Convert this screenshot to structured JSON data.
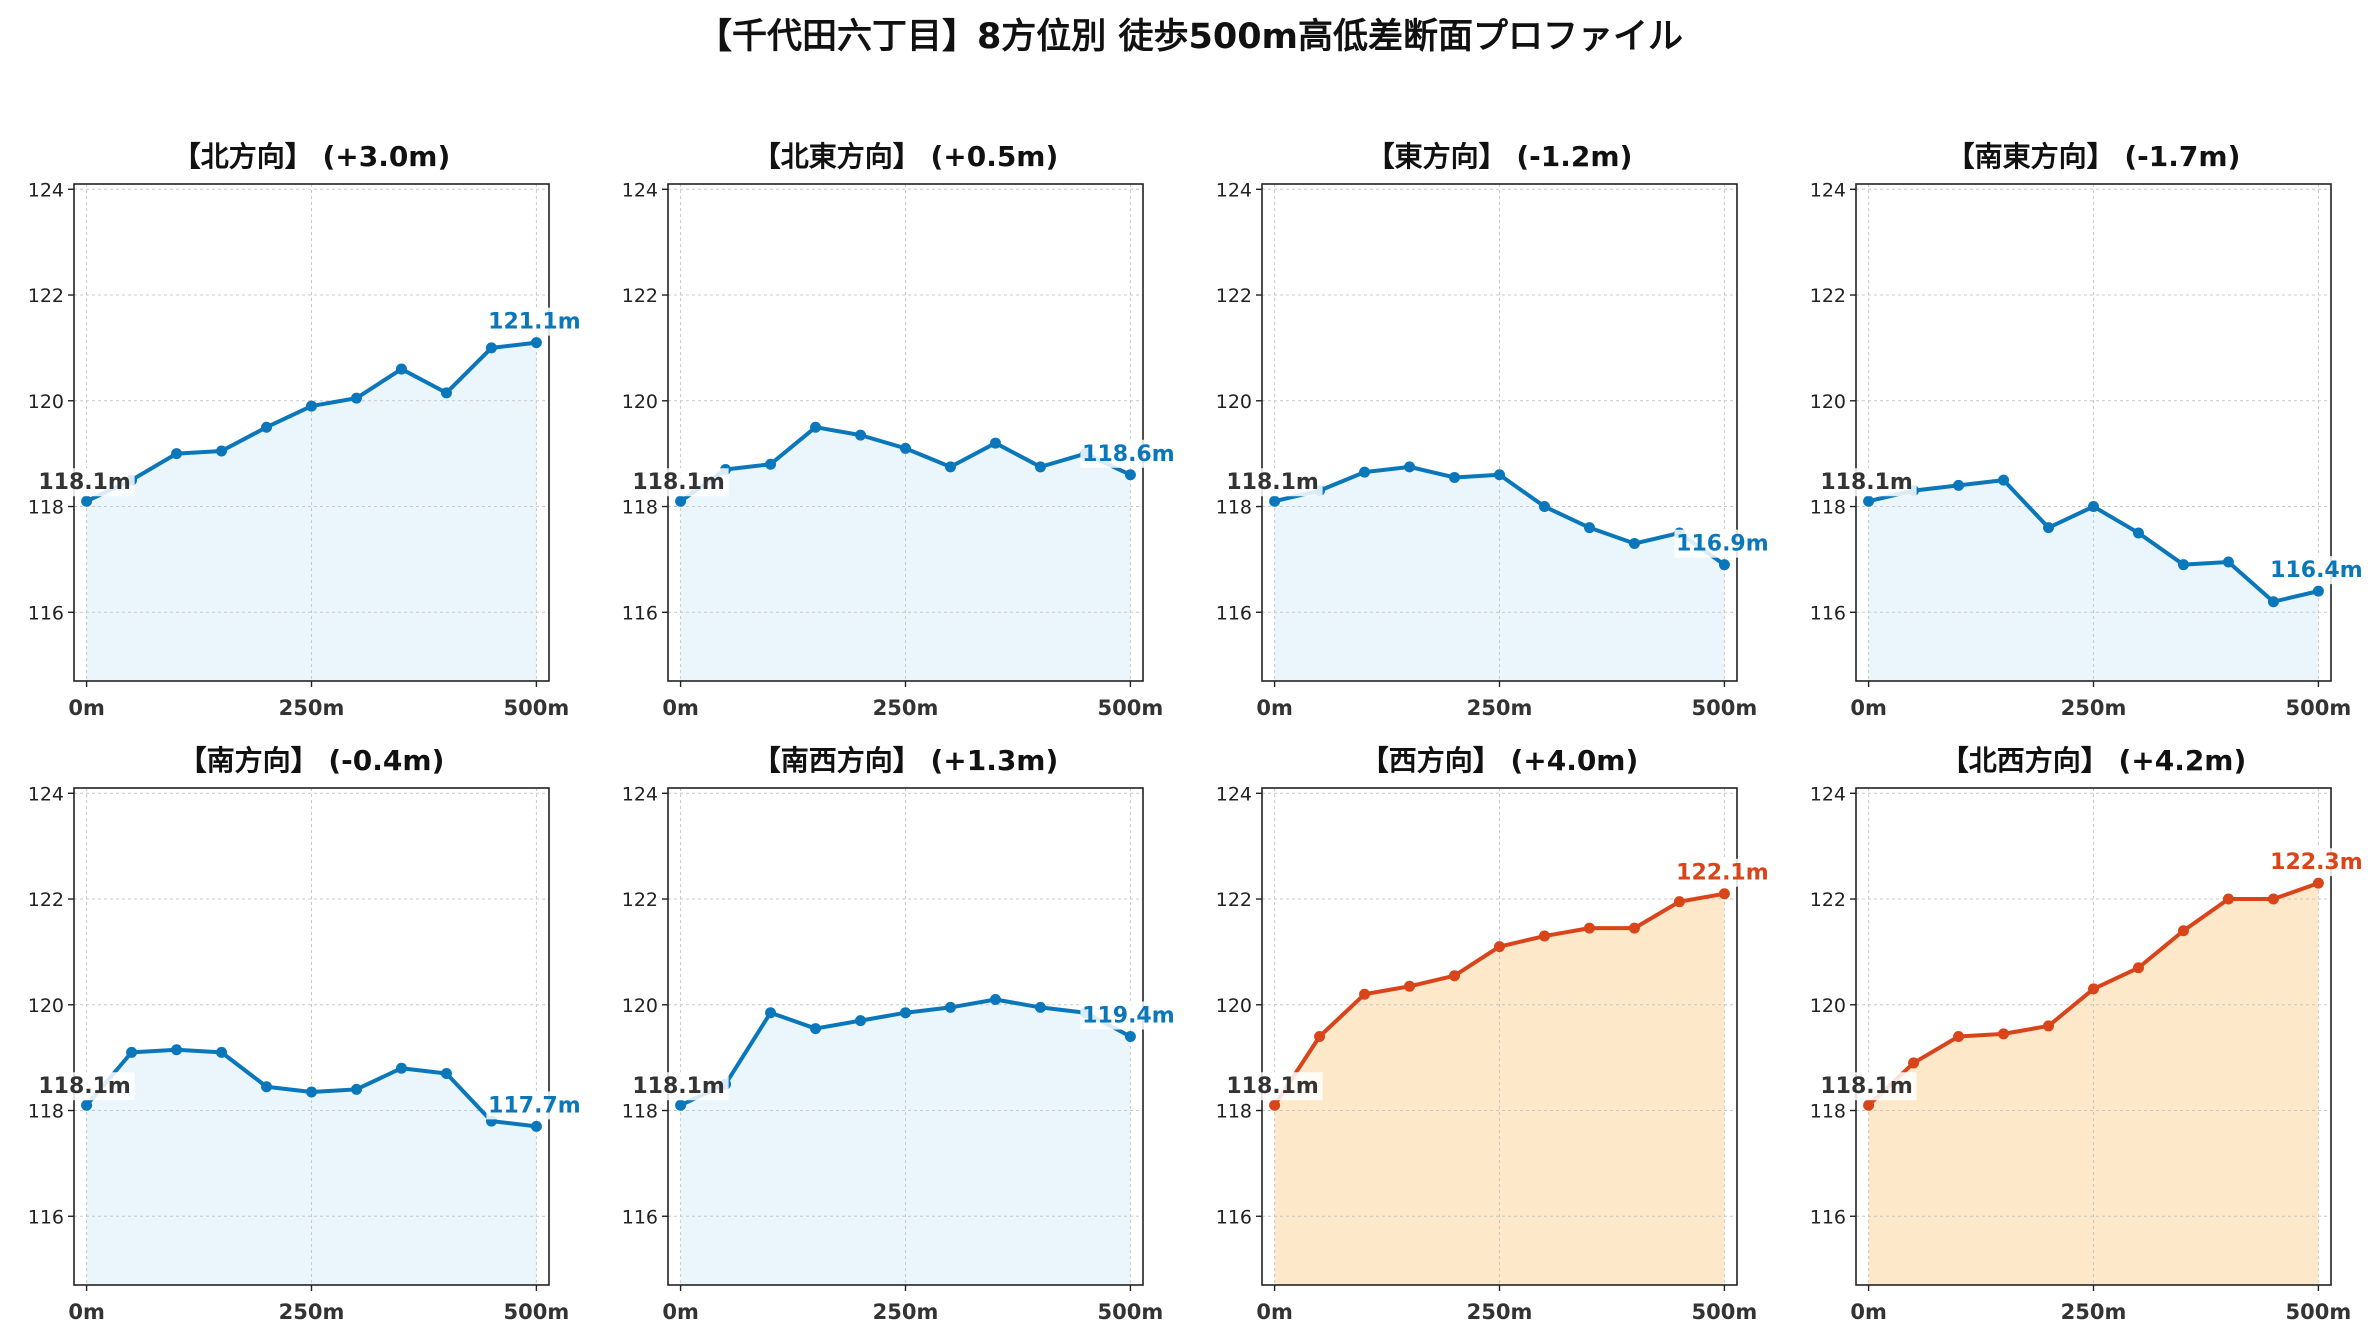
{
  "title": "【千代田六丁目】8方位別 徒歩500m高低差断面プロファイル",
  "colors": {
    "down_line": "#0a77bb",
    "down_fill": "#eaf6fc",
    "up_line": "#d9441a",
    "up_fill": "#fde9c9",
    "start_label": "#333333"
  },
  "chart_data": [
    {
      "type": "line",
      "title": "【北方向】 (+3.0m)",
      "x": [
        0,
        50,
        100,
        150,
        200,
        250,
        300,
        350,
        400,
        450,
        500
      ],
      "x_tick_labels": [
        "0m",
        "250m",
        "500m"
      ],
      "x_ticks": [
        0,
        250,
        500
      ],
      "y": [
        118.1,
        118.5,
        119.0,
        119.05,
        119.5,
        119.9,
        120.05,
        120.6,
        120.15,
        121.0,
        121.1
      ],
      "ylim": [
        114.7,
        124.1
      ],
      "y_ticks": [
        116,
        118,
        120,
        122,
        124
      ],
      "start_label": "118.1m",
      "end_label": "121.1m",
      "style": "blue",
      "grid": true
    },
    {
      "type": "line",
      "title": "【北東方向】 (+0.5m)",
      "x": [
        0,
        50,
        100,
        150,
        200,
        250,
        300,
        350,
        400,
        450,
        500
      ],
      "x_tick_labels": [
        "0m",
        "250m",
        "500m"
      ],
      "x_ticks": [
        0,
        250,
        500
      ],
      "y": [
        118.1,
        118.7,
        118.8,
        119.5,
        119.35,
        119.1,
        118.75,
        119.2,
        118.75,
        119.0,
        118.6
      ],
      "ylim": [
        114.7,
        124.1
      ],
      "y_ticks": [
        116,
        118,
        120,
        122,
        124
      ],
      "start_label": "118.1m",
      "end_label": "118.6m",
      "style": "blue",
      "grid": true
    },
    {
      "type": "line",
      "title": "【東方向】 (-1.2m)",
      "x": [
        0,
        50,
        100,
        150,
        200,
        250,
        300,
        350,
        400,
        450,
        500
      ],
      "x_tick_labels": [
        "0m",
        "250m",
        "500m"
      ],
      "x_ticks": [
        0,
        250,
        500
      ],
      "y": [
        118.1,
        118.3,
        118.65,
        118.75,
        118.55,
        118.6,
        118.0,
        117.6,
        117.3,
        117.5,
        116.9
      ],
      "ylim": [
        114.7,
        124.1
      ],
      "y_ticks": [
        116,
        118,
        120,
        122,
        124
      ],
      "start_label": "118.1m",
      "end_label": "116.9m",
      "style": "blue",
      "grid": true
    },
    {
      "type": "line",
      "title": "【南東方向】 (-1.7m)",
      "x": [
        0,
        50,
        100,
        150,
        200,
        250,
        300,
        350,
        400,
        450,
        500
      ],
      "x_tick_labels": [
        "0m",
        "250m",
        "500m"
      ],
      "x_ticks": [
        0,
        250,
        500
      ],
      "y": [
        118.1,
        118.3,
        118.4,
        118.5,
        117.6,
        118.0,
        117.5,
        116.9,
        116.95,
        116.2,
        116.4
      ],
      "ylim": [
        114.7,
        124.1
      ],
      "y_ticks": [
        116,
        118,
        120,
        122,
        124
      ],
      "start_label": "118.1m",
      "end_label": "116.4m",
      "style": "blue",
      "grid": true
    },
    {
      "type": "line",
      "title": "【南方向】 (-0.4m)",
      "x": [
        0,
        50,
        100,
        150,
        200,
        250,
        300,
        350,
        400,
        450,
        500
      ],
      "x_tick_labels": [
        "0m",
        "250m",
        "500m"
      ],
      "x_ticks": [
        0,
        250,
        500
      ],
      "y": [
        118.1,
        119.1,
        119.15,
        119.1,
        118.45,
        118.35,
        118.4,
        118.8,
        118.7,
        117.8,
        117.7
      ],
      "ylim": [
        114.7,
        124.1
      ],
      "y_ticks": [
        116,
        118,
        120,
        122,
        124
      ],
      "start_label": "118.1m",
      "end_label": "117.7m",
      "style": "blue",
      "grid": true
    },
    {
      "type": "line",
      "title": "【南西方向】 (+1.3m)",
      "x": [
        0,
        50,
        100,
        150,
        200,
        250,
        300,
        350,
        400,
        450,
        500
      ],
      "x_tick_labels": [
        "0m",
        "250m",
        "500m"
      ],
      "x_ticks": [
        0,
        250,
        500
      ],
      "y": [
        118.1,
        118.5,
        119.85,
        119.55,
        119.7,
        119.85,
        119.95,
        120.1,
        119.95,
        119.85,
        119.4
      ],
      "ylim": [
        114.7,
        124.1
      ],
      "y_ticks": [
        116,
        118,
        120,
        122,
        124
      ],
      "start_label": "118.1m",
      "end_label": "119.4m",
      "style": "blue",
      "grid": true
    },
    {
      "type": "line",
      "title": "【西方向】 (+4.0m)",
      "x": [
        0,
        50,
        100,
        150,
        200,
        250,
        300,
        350,
        400,
        450,
        500
      ],
      "x_tick_labels": [
        "0m",
        "250m",
        "500m"
      ],
      "x_ticks": [
        0,
        250,
        500
      ],
      "y": [
        118.1,
        119.4,
        120.2,
        120.35,
        120.55,
        121.1,
        121.3,
        121.45,
        121.45,
        121.95,
        122.1
      ],
      "ylim": [
        114.7,
        124.1
      ],
      "y_ticks": [
        116,
        118,
        120,
        122,
        124
      ],
      "start_label": "118.1m",
      "end_label": "122.1m",
      "style": "orange",
      "grid": true
    },
    {
      "type": "line",
      "title": "【北西方向】 (+4.2m)",
      "x": [
        0,
        50,
        100,
        150,
        200,
        250,
        300,
        350,
        400,
        450,
        500
      ],
      "x_tick_labels": [
        "0m",
        "250m",
        "500m"
      ],
      "x_ticks": [
        0,
        250,
        500
      ],
      "y": [
        118.1,
        118.9,
        119.4,
        119.45,
        119.6,
        120.3,
        120.7,
        121.4,
        122.0,
        122.0,
        122.3
      ],
      "ylim": [
        114.7,
        124.1
      ],
      "y_ticks": [
        116,
        118,
        120,
        122,
        124
      ],
      "start_label": "118.1m",
      "end_label": "122.3m",
      "style": "orange",
      "grid": true
    }
  ]
}
